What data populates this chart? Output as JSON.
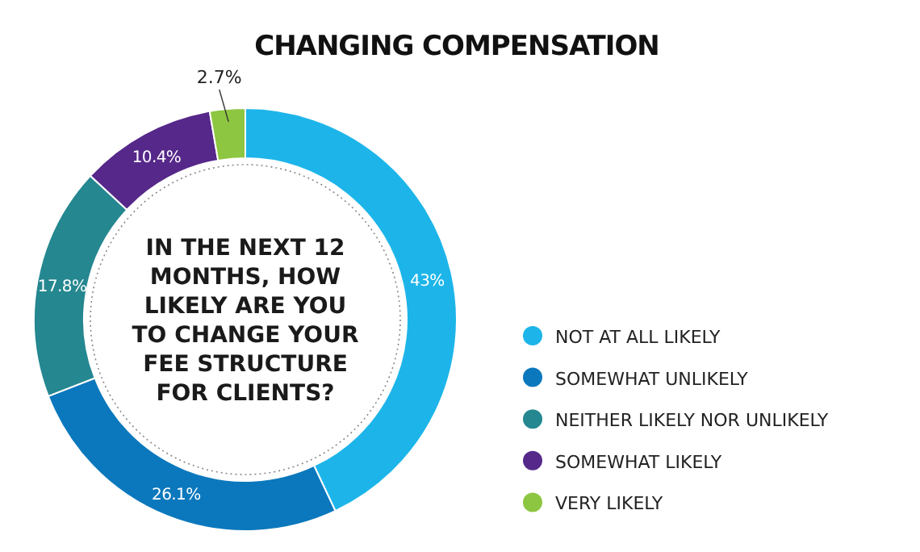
{
  "chart_data": {
    "type": "donut",
    "title": "CHANGING COMPENSATION",
    "annotations": [
      "IN THE NEXT 12 MONTHS, HOW LIKELY ARE YOU TO CHANGE YOUR FEE STRUCTURE FOR CLIENTS?"
    ],
    "categories": [
      "NOT AT ALL LIKELY",
      "SOMEWHAT UNLIKELY",
      "NEITHER LIKELY NOR UNLIKELY",
      "SOMEWHAT LIKELY",
      "VERY LIKELY"
    ],
    "values": [
      43,
      26.1,
      17.8,
      10.4,
      2.7
    ],
    "value_labels": [
      "43%",
      "26.1%",
      "17.8%",
      "10.4%",
      "2.7%"
    ],
    "colors": [
      "#1db5e9",
      "#0b78bd",
      "#258790",
      "#56288a",
      "#8dc641"
    ],
    "legend": "right"
  }
}
